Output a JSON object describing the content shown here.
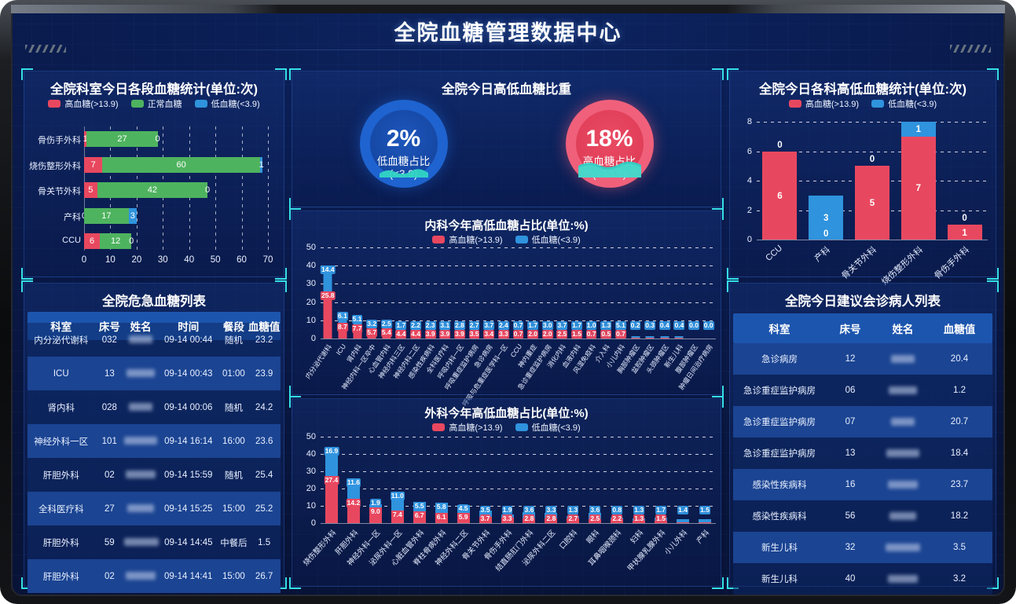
{
  "header": {
    "title": "全院血糖管理数据中心"
  },
  "colors": {
    "red": "#e8485f",
    "green": "#4eb35f",
    "blue": "#2f93dd",
    "cyan": "#35e0e8",
    "teal_wave": "#30d5c4"
  },
  "panels": {
    "critical_table": {
      "title": "全院危急血糖列表",
      "headers": [
        "科室",
        "床号",
        "姓名",
        "时间",
        "餐段",
        "血糖值"
      ],
      "rows": [
        [
          "内分泌代谢科",
          "032",
          "",
          "09-14 00:44",
          "随机",
          "23.2"
        ],
        [
          "ICU",
          "13",
          "",
          "09-14 00:43",
          "01:00",
          "23.9"
        ],
        [
          "肾内科",
          "028",
          "",
          "09-14 00:06",
          "随机",
          "24.2"
        ],
        [
          "神经外科一区",
          "101",
          "",
          "09-14 16:14",
          "16:00",
          "23.6"
        ],
        [
          "肝胆外科",
          "02",
          "",
          "09-14 15:59",
          "随机",
          "25.4"
        ],
        [
          "全科医疗科",
          "27",
          "",
          "09-14 15:25",
          "15:00",
          "25.2"
        ],
        [
          "肝胆外科",
          "59",
          "",
          "09-14 14:45",
          "中餐后",
          "1.5"
        ],
        [
          "肝胆外科",
          "02",
          "",
          "09-14 14:41",
          "15:00",
          "26.7"
        ]
      ]
    },
    "consult_table": {
      "title": "全院今日建议会诊病人列表",
      "headers": [
        "科室",
        "床号",
        "姓名",
        "血糖值"
      ],
      "rows": [
        [
          "急诊病房",
          "12",
          "",
          "20.4"
        ],
        [
          "急诊重症监护病房",
          "06",
          "",
          "1.2"
        ],
        [
          "急诊重症监护病房",
          "07",
          "",
          "20.7"
        ],
        [
          "急诊重症监护病房",
          "13",
          "",
          "18.4"
        ],
        [
          "感染性疾病科",
          "16",
          "",
          "23.7"
        ],
        [
          "感染性疾病科",
          "56",
          "",
          "18.2"
        ],
        [
          "新生儿科",
          "32",
          "",
          "3.5"
        ],
        [
          "新生儿科",
          "40",
          "",
          "3.2"
        ]
      ]
    }
  },
  "chart_data": [
    {
      "id": "dept_stats",
      "type": "bar",
      "orientation": "horizontal",
      "title": "全院科室今日各段血糖统计(单位:次)",
      "categories": [
        "骨伤手外科",
        "烧伤整形外科",
        "骨关节外科",
        "产科",
        "CCU"
      ],
      "series": [
        {
          "name": "高血糖(>13.9)",
          "color": "#e8485f",
          "values": [
            1,
            7,
            5,
            0,
            6
          ]
        },
        {
          "name": "正常血糖",
          "color": "#4eb35f",
          "values": [
            27,
            60,
            42,
            17,
            12
          ]
        },
        {
          "name": "低血糖(<3.9)",
          "color": "#2f93dd",
          "values": [
            0,
            1,
            0,
            3,
            0
          ]
        }
      ],
      "xlim": [
        0,
        70
      ],
      "xticks": [
        0,
        10,
        20,
        30,
        40,
        50,
        60,
        70
      ],
      "grid": "dashed-vertical"
    },
    {
      "id": "ratio_gauges",
      "type": "pie",
      "title": "全院今日高低血糖比重",
      "gauges": [
        {
          "value": 2,
          "display": "2%",
          "label": "低血糖占比(<3.9)",
          "color": "blue"
        },
        {
          "value": 18,
          "display": "18%",
          "label": "高血糖占比(>13.9)",
          "color": "red"
        }
      ]
    },
    {
      "id": "internal_year",
      "type": "bar",
      "title": "内科今年高低血糖占比(单位:%)",
      "categories": [
        "内分泌代谢科",
        "ICU",
        "肾内科",
        "神经内科一区卒中",
        "心血管内科",
        "神经内科三区",
        "神经内科二区",
        "感染性疾病科",
        "全科医疗科",
        "呼吸内科一区",
        "呼吸重症监护病房",
        "急诊病房",
        "呼吸与危重症医学科一区",
        "CCU",
        "神内重症",
        "急诊重症监护病房",
        "消化内科",
        "血液内科",
        "风湿免疫科",
        "介入科",
        "小儿内科",
        "胸部肿瘤区",
        "盆腔肿瘤区",
        "头颈肿瘤区",
        "新生儿科",
        "腹部肿瘤区",
        "肿瘤日间治疗病房"
      ],
      "series": [
        {
          "name": "高血糖(>13.9)",
          "color": "#e8485f",
          "values": [
            25.8,
            8.7,
            7.7,
            5.7,
            5.4,
            4.4,
            4.4,
            3.9,
            3.9,
            3.9,
            3.5,
            3.4,
            3.3,
            0.7,
            2.0,
            2.0,
            2.5,
            1.5,
            0.7,
            0.5,
            0.7,
            0.1,
            0.1,
            0.1,
            0.1,
            0.0,
            0.0
          ]
        },
        {
          "name": "低血糖(<3.9)",
          "color": "#2f93dd",
          "values": [
            14.4,
            6.1,
            5.1,
            3.2,
            2.5,
            1.7,
            2.2,
            2.3,
            3.1,
            2.8,
            2.7,
            3.7,
            2.4,
            0.7,
            1.7,
            3.0,
            3.7,
            1.7,
            1.0,
            1.3,
            5.1,
            0.2,
            0.3,
            0.4,
            0.4,
            0.0,
            0.0
          ]
        }
      ],
      "labels_top": [
        "14.4",
        "6.1",
        "5.1",
        "3.2",
        "2.5",
        "1.7",
        "2.2",
        "2.3",
        "3.1",
        "2.8",
        "2.7",
        "3.7",
        "2.4",
        "0.7",
        "1.7",
        "3.0",
        "3.7",
        "1.7",
        "1.0",
        "1.3",
        "5.1",
        "0.2",
        "0.3",
        "0.4",
        "0.4",
        "0.0",
        "0.0"
      ],
      "labels_bottom": [
        "25.8",
        "8.7",
        "7.7",
        "5.7",
        "5.4",
        "4.4",
        "4.4",
        "3.9",
        "3.9",
        "3.9",
        "3.5",
        "3.4",
        "3.3",
        "0.7",
        "2.0",
        "2.0",
        "2.5",
        "1.5",
        "0.7",
        "0.5",
        "0.7",
        "",
        "",
        "",
        "",
        "",
        ""
      ],
      "ylim": [
        0,
        50
      ],
      "yticks": [
        0,
        10,
        20,
        30,
        40,
        50
      ],
      "grid": "dashed-horizontal"
    },
    {
      "id": "surgery_year",
      "type": "bar",
      "title": "外科今年高低血糖占比(单位:%)",
      "categories": [
        "烧伤整形外科",
        "肝胆外科",
        "神经外科一区",
        "泌尿外科一区",
        "心脏血管外科",
        "脊柱骨病外科",
        "神经外科二区",
        "骨关节外科",
        "骨伤手外科",
        "结直肠肛门外科",
        "泌尿外科二区",
        "口腔科",
        "眼科",
        "耳鼻咽喉颈科",
        "妇科",
        "甲状腺乳腺外科",
        "小儿外科",
        "产科"
      ],
      "series": [
        {
          "name": "高血糖(>13.9)",
          "color": "#e8485f",
          "values": [
            27.4,
            14.2,
            9.0,
            7.4,
            6.7,
            6.1,
            5.9,
            3.7,
            3.3,
            2.8,
            2.8,
            2.7,
            2.5,
            2.2,
            1.3,
            1.5,
            0.2,
            0.1
          ]
        },
        {
          "name": "低血糖(<3.9)",
          "color": "#2f93dd",
          "values": [
            16.9,
            11.6,
            1.9,
            11.0,
            5.5,
            5.8,
            4.5,
            3.5,
            1.9,
            3.6,
            3.3,
            1.3,
            3.6,
            0.8,
            1.3,
            1.7,
            1.4,
            1.5
          ]
        }
      ],
      "labels_top": [
        "16.9",
        "11.6",
        "1.9",
        "11.0",
        "5.5",
        "5.8",
        "4.5",
        "3.5",
        "1.9",
        "3.6",
        "3.3",
        "1.3",
        "3.6",
        "0.8",
        "1.3",
        "1.7",
        "1.4",
        "1.5"
      ],
      "labels_bottom": [
        "27.4",
        "14.2",
        "9.0",
        "7.4",
        "6.7",
        "6.1",
        "5.9",
        "3.7",
        "3.3",
        "2.8",
        "2.8",
        "2.7",
        "2.5",
        "2.2",
        "1.3",
        "1.5",
        "",
        ""
      ],
      "ylim": [
        0,
        50
      ],
      "yticks": [
        0,
        10,
        20,
        30,
        40,
        50
      ],
      "grid": "dashed-horizontal"
    },
    {
      "id": "dept_highlow",
      "type": "bar",
      "title": "全院今日各科高低血糖统计(单位:次)",
      "categories": [
        "CCU",
        "产科",
        "骨关节外科",
        "烧伤整形外科",
        "骨伤手外科"
      ],
      "series": [
        {
          "name": "高血糖(>13.9)",
          "color": "#e8485f",
          "values": [
            6,
            0,
            5,
            7,
            1
          ]
        },
        {
          "name": "低血糖(<3.9)",
          "color": "#2f93dd",
          "values": [
            0,
            3,
            0,
            1,
            0
          ]
        }
      ],
      "labels_red": [
        "6",
        "0",
        "5",
        "7",
        "1"
      ],
      "labels_blue": [
        "0",
        "3",
        "0",
        "1",
        "0"
      ],
      "ylim": [
        0,
        8
      ],
      "yticks": [
        0,
        2,
        4,
        6,
        8
      ],
      "grid": "dashed-horizontal"
    }
  ]
}
